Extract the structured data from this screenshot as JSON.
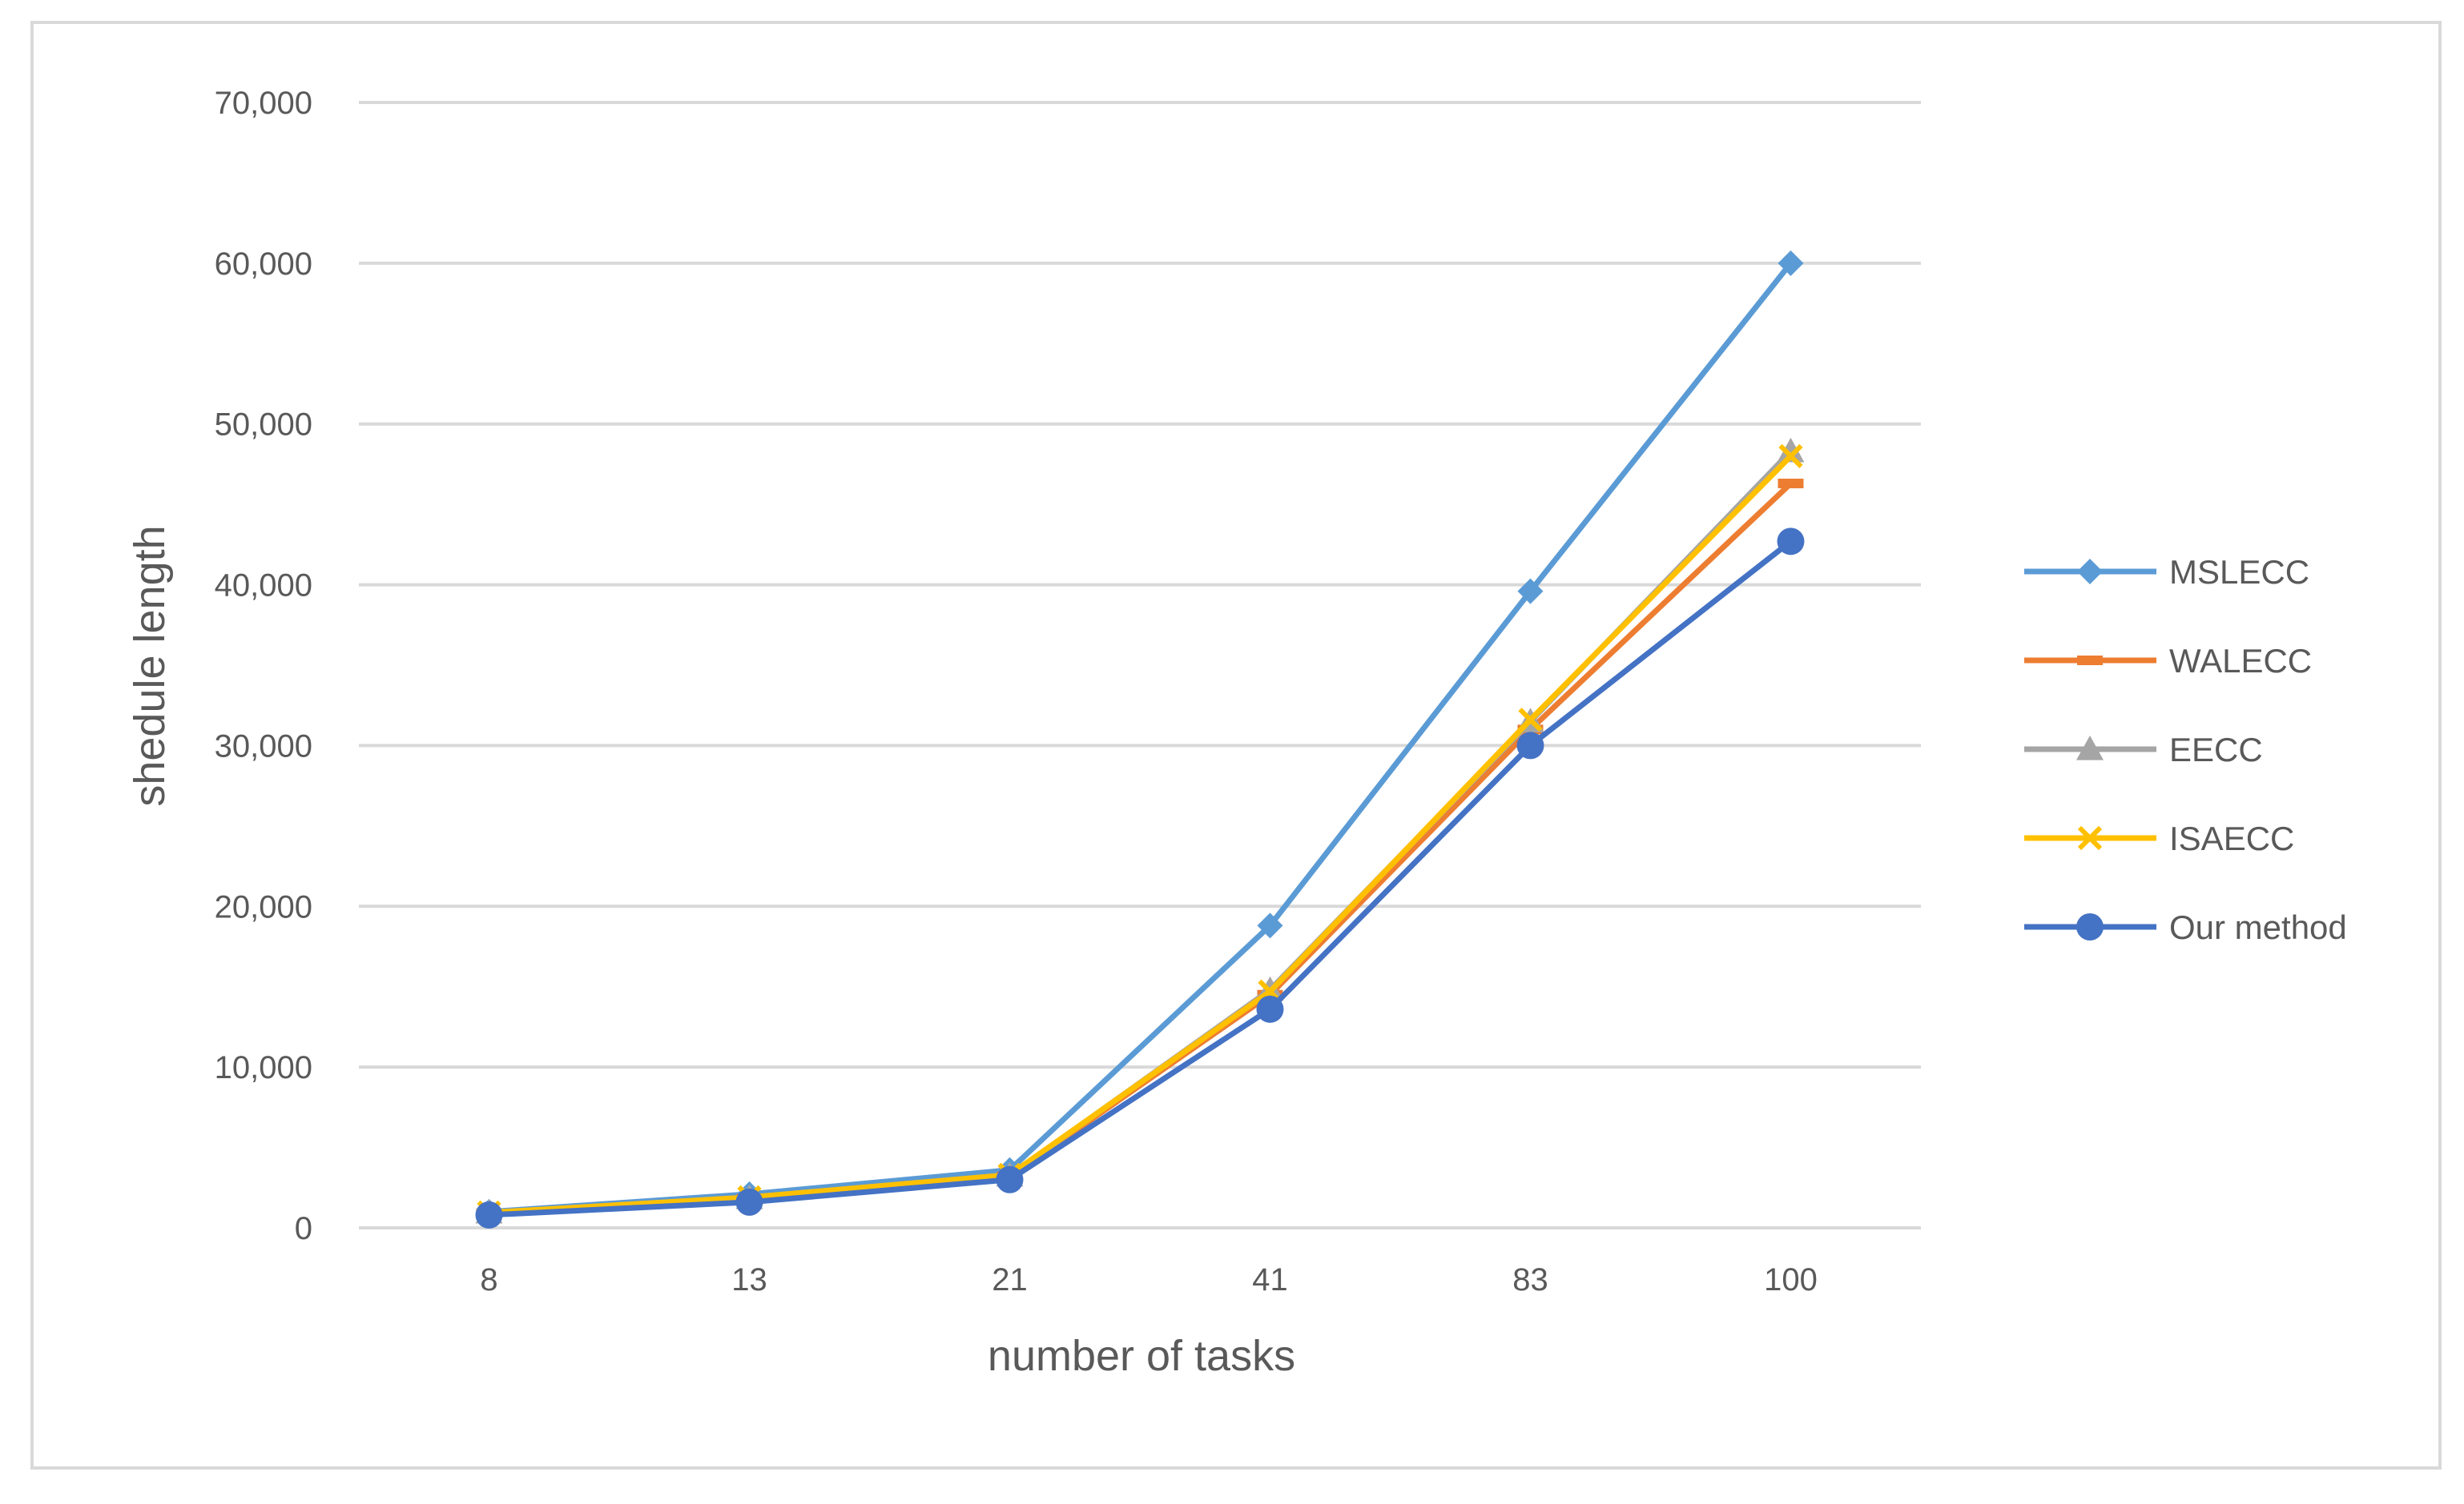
{
  "chart_data": {
    "type": "line",
    "title": "",
    "xlabel": "number of tasks",
    "ylabel": "shedule length",
    "categories": [
      "8",
      "13",
      "21",
      "41",
      "83",
      "100"
    ],
    "ylim": [
      0,
      70000
    ],
    "yticks": [
      0,
      10000,
      20000,
      30000,
      40000,
      50000,
      60000,
      70000
    ],
    "ytick_labels": [
      "0",
      "10,000",
      "20,000",
      "30,000",
      "40,000",
      "50,000",
      "60,000",
      "70,000"
    ],
    "grid": "horizontal",
    "legend_position": "right",
    "series": [
      {
        "name": "MSLECC",
        "color": "#5b9bd5",
        "marker": "diamond",
        "values": [
          1000,
          2100,
          3600,
          18800,
          39600,
          60000
        ]
      },
      {
        "name": "WALECC",
        "color": "#ed7d31",
        "marker": "dash",
        "values": [
          900,
          1800,
          3200,
          14500,
          31000,
          46300
        ]
      },
      {
        "name": "EECC",
        "color": "#a5a5a5",
        "marker": "triangle",
        "values": [
          950,
          1850,
          3250,
          14800,
          31500,
          48300
        ]
      },
      {
        "name": "ISAECC",
        "color": "#ffc000",
        "marker": "x",
        "values": [
          950,
          1900,
          3300,
          14700,
          31600,
          48000
        ]
      },
      {
        "name": "Our method",
        "color": "#4472c4",
        "marker": "circle",
        "values": [
          800,
          1600,
          3000,
          13600,
          30000,
          42700
        ]
      }
    ]
  }
}
